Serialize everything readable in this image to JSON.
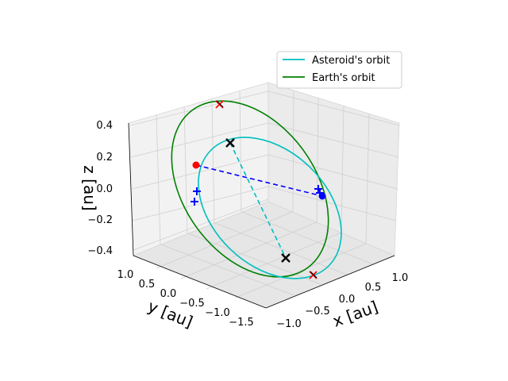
{
  "chart_data": {
    "type": "line",
    "projection": "3d",
    "title": "",
    "legend": {
      "placement": "top-right",
      "entries": [
        {
          "label": "Asteroid's orbit",
          "color": "#00bfbf"
        },
        {
          "label": "Earth's orbit",
          "color": "#008000"
        }
      ]
    },
    "axes": {
      "x": {
        "label": "x [au]",
        "ticks": [
          "−1.0",
          "−0.5",
          "0.0",
          "0.5",
          "1.0"
        ],
        "range": [
          -1.2,
          1.2
        ]
      },
      "y": {
        "label": "y [au]",
        "ticks": [
          "−1.5",
          "−1.0",
          "−0.5",
          "0.0",
          "0.5",
          "1.0"
        ],
        "range": [
          -1.6,
          1.2
        ]
      },
      "z": {
        "label": "z [au]",
        "ticks": [
          "−0.4",
          "−0.2",
          "0.0",
          "0.2",
          "0.4"
        ],
        "range": [
          -0.45,
          0.45
        ]
      },
      "grid": true
    },
    "series": [
      {
        "name": "Asteroid's orbit",
        "color": "#00bfbf",
        "style": "solid"
      },
      {
        "name": "Earth's orbit",
        "color": "#008000",
        "style": "solid"
      }
    ],
    "markers": [
      {
        "kind": "current position",
        "color": "red",
        "shape": "circle"
      },
      {
        "kind": "current position",
        "color": "blue",
        "shape": "circle"
      },
      {
        "kind": "node",
        "color": "black",
        "shape": "x"
      },
      {
        "kind": "node",
        "color": "black",
        "shape": "x"
      },
      {
        "kind": "node",
        "color": "red",
        "shape": "x"
      },
      {
        "kind": "node",
        "color": "red",
        "shape": "x"
      },
      {
        "kind": "apsis",
        "color": "blue",
        "shape": "plus"
      },
      {
        "kind": "apsis",
        "color": "blue",
        "shape": "plus"
      },
      {
        "kind": "apsis",
        "color": "blue",
        "shape": "plus"
      },
      {
        "kind": "apsis",
        "color": "blue",
        "shape": "plus"
      }
    ],
    "connectors": [
      {
        "color": "blue",
        "style": "dashed"
      },
      {
        "color": "#00bfbf",
        "style": "dashed"
      }
    ]
  }
}
